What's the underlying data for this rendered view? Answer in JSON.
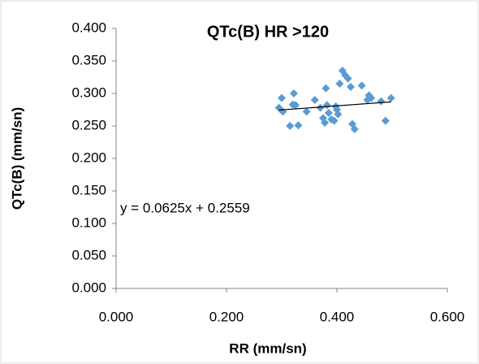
{
  "chart_data": {
    "type": "scatter",
    "title": "QTc(B) HR >120",
    "x_label": "RR (mm/sn)",
    "y_label": "QTc(B) (mm/sn)",
    "series": [
      {
        "name": "QTc(B)",
        "color": "#5b9bd5",
        "x": [
          0.295,
          0.3,
          0.302,
          0.315,
          0.32,
          0.322,
          0.325,
          0.33,
          0.345,
          0.36,
          0.37,
          0.375,
          0.378,
          0.38,
          0.382,
          0.385,
          0.39,
          0.395,
          0.398,
          0.4,
          0.402,
          0.405,
          0.41,
          0.415,
          0.42,
          0.425,
          0.428,
          0.432,
          0.445,
          0.455,
          0.458,
          0.462,
          0.48,
          0.488,
          0.498
        ],
        "values": [
          0.278,
          0.293,
          0.272,
          0.25,
          0.283,
          0.3,
          0.282,
          0.251,
          0.272,
          0.29,
          0.278,
          0.262,
          0.255,
          0.308,
          0.282,
          0.27,
          0.26,
          0.258,
          0.28,
          0.275,
          0.268,
          0.315,
          0.335,
          0.328,
          0.323,
          0.31,
          0.253,
          0.245,
          0.312,
          0.29,
          0.297,
          0.293,
          0.288,
          0.258,
          0.293
        ]
      }
    ],
    "trendline": {
      "slope": 0.0625,
      "intercept": 0.2559,
      "label": "y = 0.0625x + 0.2559",
      "color": "#000000"
    },
    "xlim": [
      0,
      0.6
    ],
    "xticks": [
      {
        "value": 0,
        "label": "0.000"
      },
      {
        "value": 0.2,
        "label": "0.200"
      },
      {
        "value": 0.4,
        "label": "0.400"
      },
      {
        "value": 0.6,
        "label": "0.600"
      }
    ],
    "ylim": [
      0,
      0.4
    ],
    "yticks": [
      {
        "value": 0,
        "label": "0.000"
      },
      {
        "value": 0.05,
        "label": "0.050"
      },
      {
        "value": 0.1,
        "label": "0.100"
      },
      {
        "value": 0.15,
        "label": "0.150"
      },
      {
        "value": 0.2,
        "label": "0.200"
      },
      {
        "value": 0.25,
        "label": "0.250"
      },
      {
        "value": 0.3,
        "label": "0.300"
      },
      {
        "value": 0.35,
        "label": "0.350"
      },
      {
        "value": 0.4,
        "label": "0.400"
      }
    ],
    "grid": false
  }
}
